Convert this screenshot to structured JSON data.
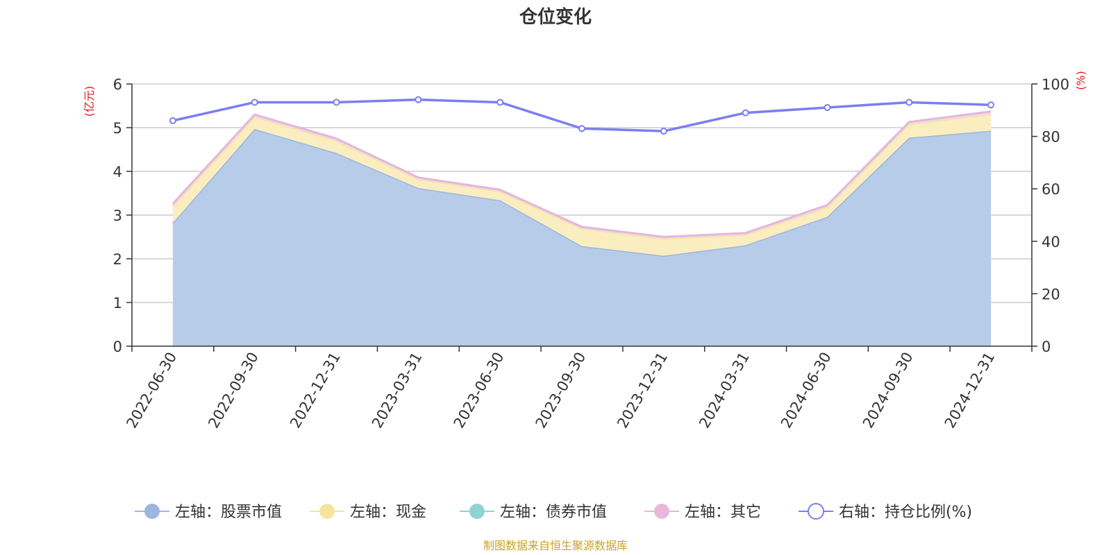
{
  "chart_data": {
    "type": "area",
    "title": "仓位变化",
    "categories": [
      "2022-06-30",
      "2022-09-30",
      "2022-12-31",
      "2023-03-31",
      "2023-06-30",
      "2023-09-30",
      "2023-12-31",
      "2024-03-31",
      "2024-06-30",
      "2024-09-30",
      "2024-12-31"
    ],
    "left_axis": {
      "unit": "(亿元)",
      "ylim": [
        0,
        6
      ],
      "ticks": [
        "0",
        "1",
        "2",
        "3",
        "4",
        "5",
        "6"
      ]
    },
    "right_axis": {
      "unit": "(%)",
      "ylim": [
        0,
        100
      ],
      "ticks": [
        "0",
        "20",
        "40",
        "60",
        "80",
        "100"
      ]
    },
    "grid": true,
    "stacked": true,
    "legend_position": "bottom",
    "series": [
      {
        "name": "左轴：股票市值",
        "axis": "left",
        "kind": "area",
        "color": "#9db5df",
        "fill": "#b7cce9",
        "values": [
          2.82,
          4.97,
          4.42,
          3.62,
          3.34,
          2.29,
          2.07,
          2.31,
          2.96,
          4.77,
          4.93
        ]
      },
      {
        "name": "左轴：现金",
        "axis": "left",
        "kind": "area",
        "color": "#f5e4a0",
        "fill": "#faeec0",
        "values": [
          0.38,
          0.28,
          0.28,
          0.2,
          0.2,
          0.4,
          0.39,
          0.24,
          0.22,
          0.31,
          0.38
        ]
      },
      {
        "name": "左轴：债券市值",
        "axis": "left",
        "kind": "area",
        "color": "#8fd3d3",
        "fill": "#8fd3d3",
        "values": [
          0,
          0,
          0,
          0,
          0,
          0,
          0,
          0,
          0,
          0,
          0
        ]
      },
      {
        "name": "左轴：其它",
        "axis": "left",
        "kind": "area",
        "color": "#e4b6dc",
        "fill": "#f1d8ec",
        "values": [
          0.06,
          0.05,
          0.05,
          0.04,
          0.04,
          0.04,
          0.04,
          0.04,
          0.05,
          0.05,
          0.06
        ]
      },
      {
        "name": "右轴：持仓比例(%)",
        "axis": "right",
        "kind": "line",
        "color": "#7b7ef0",
        "values": [
          86,
          93,
          93,
          94,
          93,
          83,
          82,
          89,
          91,
          93,
          92
        ]
      }
    ]
  },
  "source_note": "制图数据来自恒生聚源数据库"
}
